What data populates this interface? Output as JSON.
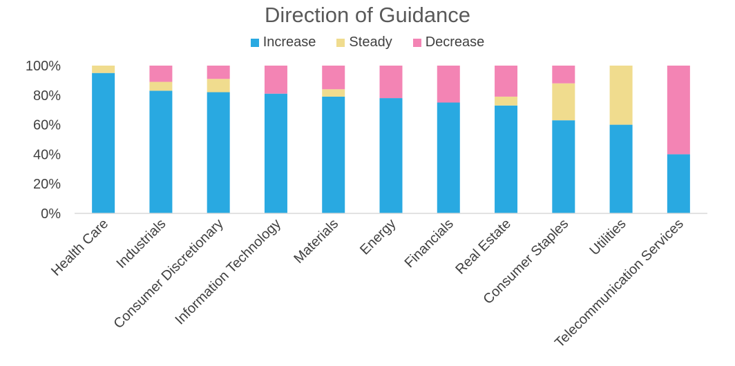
{
  "chart_data": {
    "type": "bar",
    "stacked": true,
    "title": "Direction of Guidance",
    "categories": [
      "Health Care",
      "Industrials",
      "Consumer Discretionary",
      "Information Technology",
      "Materials",
      "Energy",
      "Financials",
      "Real Estate",
      "Consumer Staples",
      "Utilities",
      "Telecommunication Services"
    ],
    "series": [
      {
        "name": "Increase",
        "color": "#29a9e1",
        "values": [
          95,
          83,
          82,
          81,
          79,
          78,
          75,
          73,
          63,
          60,
          40
        ]
      },
      {
        "name": "Steady",
        "color": "#f0dc8e",
        "values": [
          5,
          6,
          9,
          0,
          5,
          0,
          0,
          6,
          25,
          40,
          0
        ]
      },
      {
        "name": "Decrease",
        "color": "#f384b4",
        "values": [
          0,
          11,
          9,
          19,
          16,
          22,
          25,
          21,
          12,
          0,
          60
        ]
      }
    ],
    "ylim": [
      0,
      100
    ],
    "yticks": [
      "0%",
      "20%",
      "40%",
      "60%",
      "80%",
      "100%"
    ],
    "legend_position": "top",
    "grid": false
  }
}
